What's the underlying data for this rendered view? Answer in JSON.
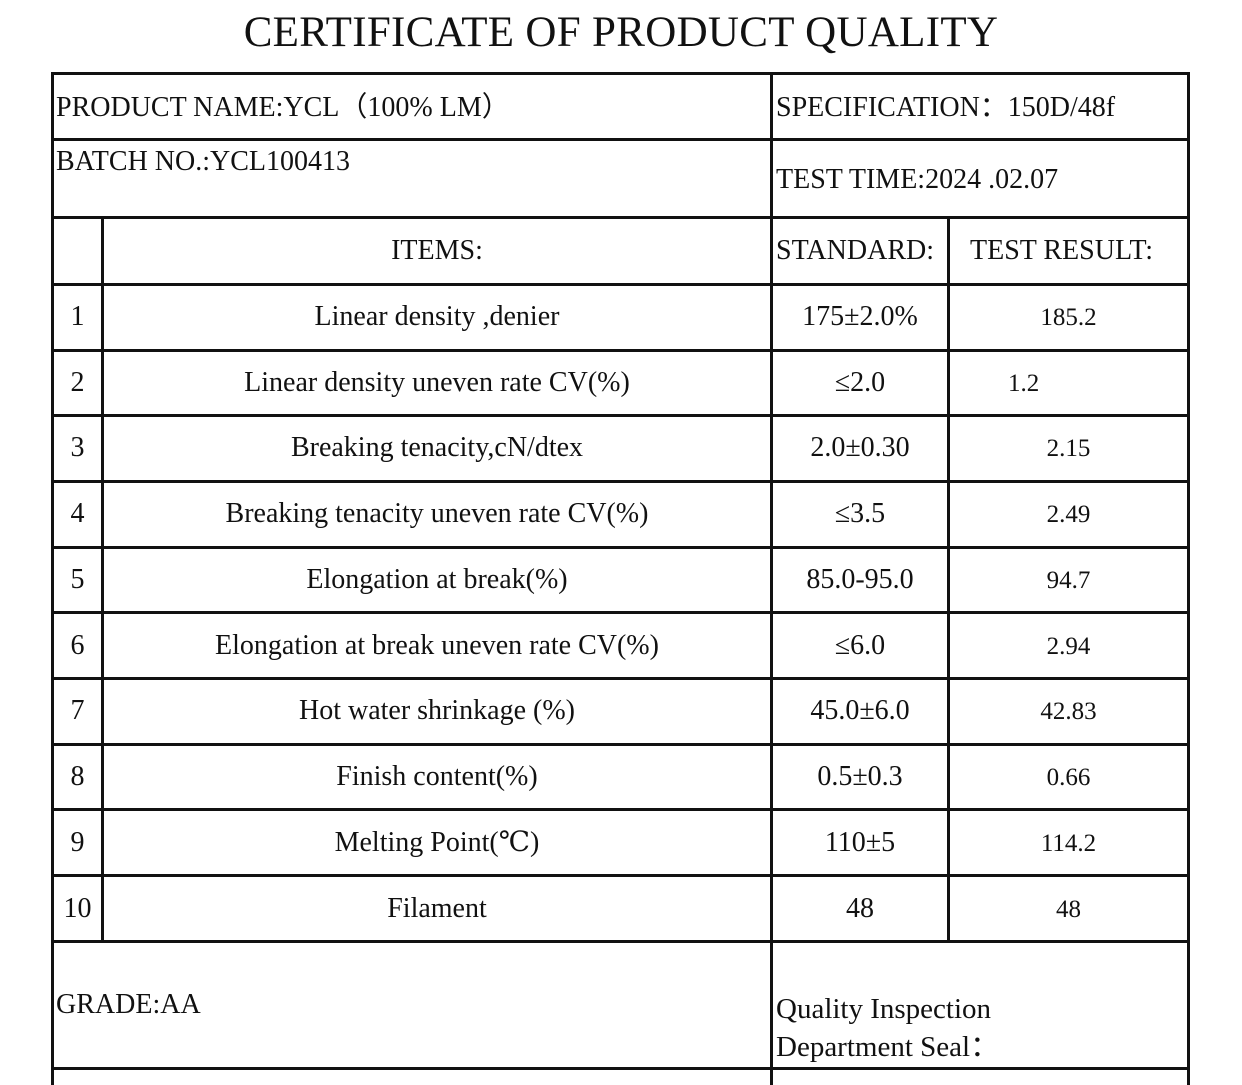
{
  "document": {
    "title": "CERTIFICATE OF PRODUCT QUALITY"
  },
  "header": {
    "product_name": "PRODUCT NAME:YCL（100% LM）",
    "specification": "SPECIFICATION：150D/48f",
    "batch_no": "BATCH NO.:YCL100413",
    "test_time": "TEST TIME:2024 .02.07"
  },
  "table": {
    "columns": {
      "items": "ITEMS:",
      "standard": "STANDARD:",
      "test_result": "TEST RESULT:"
    },
    "rows": [
      {
        "no": "1",
        "item": "Linear density ,denier",
        "standard": "175±2.0%",
        "result": "185.2"
      },
      {
        "no": "2",
        "item": "Linear density uneven rate CV(%)",
        "standard": "≤2.0",
        "result": "1.2"
      },
      {
        "no": "3",
        "item": "Breaking tenacity,cN/dtex",
        "standard": "2.0±0.30",
        "result": "2.15"
      },
      {
        "no": "4",
        "item": "Breaking tenacity uneven rate CV(%)",
        "standard": "≤3.5",
        "result": "2.49"
      },
      {
        "no": "5",
        "item": "Elongation at break(%)",
        "standard": "85.0-95.0",
        "result": "94.7"
      },
      {
        "no": "6",
        "item": "Elongation at break uneven rate CV(%)",
        "standard": "≤6.0",
        "result": "2.94"
      },
      {
        "no": "7",
        "item": "Hot water shrinkage (%)",
        "standard": "45.0±6.0",
        "result": "42.83"
      },
      {
        "no": "8",
        "item": "Finish content(%)",
        "standard": "0.5±0.3",
        "result": "0.66"
      },
      {
        "no": "9",
        "item": "Melting Point(℃)",
        "standard": "110±5",
        "result": "114.2"
      },
      {
        "no": "10",
        "item": "Filament",
        "standard": "48",
        "result": "48"
      }
    ]
  },
  "footer": {
    "grade": "GRADE:AA",
    "seal_line1": "Quality Inspection",
    "seal_line2": "Department Seal："
  }
}
